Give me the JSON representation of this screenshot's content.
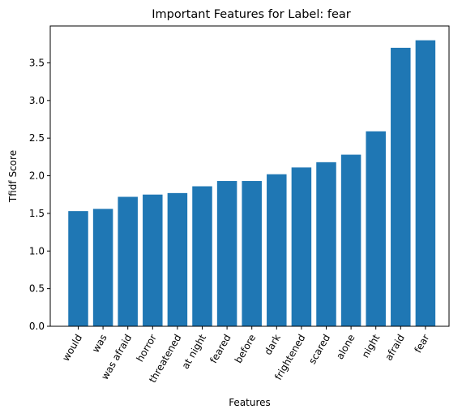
{
  "chart_data": {
    "type": "bar",
    "title": "Important Features for Label: fear",
    "xlabel": "Features",
    "ylabel": "Tfidf Score",
    "categories": [
      "would",
      "was",
      "was afraid",
      "horror",
      "threatened",
      "at night",
      "feared",
      "before",
      "dark",
      "frightened",
      "scared",
      "alone",
      "night",
      "afraid",
      "fear"
    ],
    "values": [
      1.53,
      1.56,
      1.72,
      1.75,
      1.77,
      1.86,
      1.93,
      1.93,
      2.02,
      2.11,
      2.18,
      2.28,
      2.59,
      3.7,
      3.8
    ],
    "ylim": [
      0,
      3.99
    ],
    "yticks": [
      0.0,
      0.5,
      1.0,
      1.5,
      2.0,
      2.5,
      3.0,
      3.5
    ],
    "ytick_labels": [
      "0.0",
      "0.5",
      "1.0",
      "1.5",
      "2.0",
      "2.5",
      "3.0",
      "3.5"
    ],
    "bar_color": "#1f77b4",
    "grid": false,
    "legend": false
  }
}
